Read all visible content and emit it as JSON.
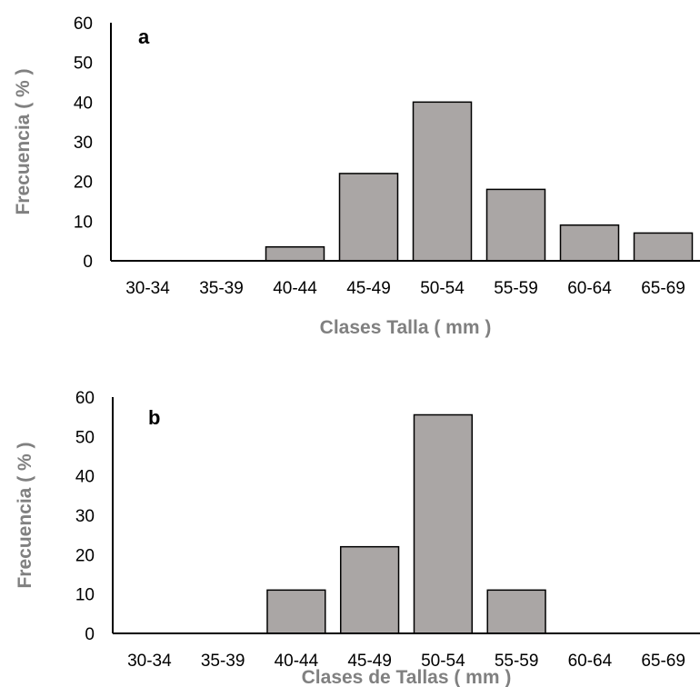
{
  "colors": {
    "bar_fill": "#aaa6a5",
    "bar_stroke": "#000000",
    "axis": "#000000",
    "axis_title": "#808080"
  },
  "chart_data": [
    {
      "type": "bar",
      "panel_label": "a",
      "categories": [
        "30-34",
        "35-39",
        "40-44",
        "45-49",
        "50-54",
        "55-59",
        "60-64",
        "65-69"
      ],
      "values": [
        0,
        0,
        3.5,
        22,
        40,
        18,
        9,
        7
      ],
      "xlabel": "Clases Talla ( mm )",
      "ylabel": "Frecuencia ( % )",
      "ylim": [
        0,
        60
      ],
      "yticks": [
        0,
        10,
        20,
        30,
        40,
        50,
        60
      ],
      "grid": false,
      "legend": "none"
    },
    {
      "type": "bar",
      "panel_label": "b",
      "categories": [
        "30-34",
        "35-39",
        "40-44",
        "45-49",
        "50-54",
        "55-59",
        "60-64",
        "65-69"
      ],
      "values": [
        0,
        0,
        11,
        22,
        55.5,
        11,
        0,
        0
      ],
      "xlabel": "Clases de Tallas ( mm )",
      "ylabel": "Frecuencia ( % )",
      "ylim": [
        0,
        60
      ],
      "yticks": [
        0,
        10,
        20,
        30,
        40,
        50,
        60
      ],
      "grid": false,
      "legend": "none"
    }
  ]
}
